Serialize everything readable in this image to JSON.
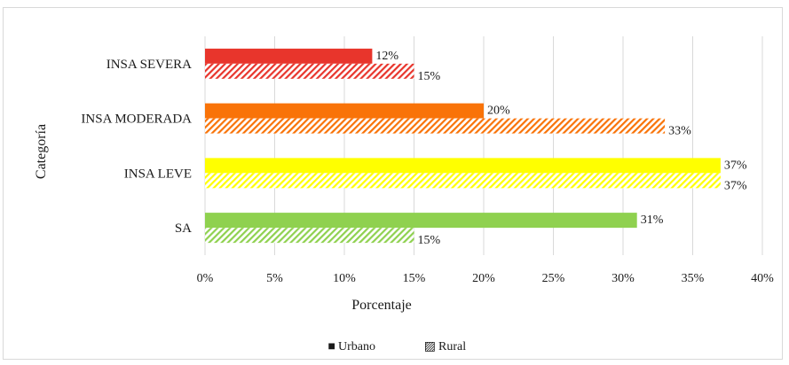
{
  "chart_data": {
    "type": "bar",
    "orientation": "horizontal",
    "categories": [
      "INSA SEVERA",
      "INSA MODERADA",
      "INSA LEVE",
      "SA"
    ],
    "series": [
      {
        "name": "Urbano",
        "values": [
          12,
          20,
          37,
          31
        ],
        "labels": [
          "12%",
          "20%",
          "37%",
          "31%"
        ],
        "pattern": "solid"
      },
      {
        "name": "Rural",
        "values": [
          15,
          33,
          37,
          15
        ],
        "labels": [
          "15%",
          "33%",
          "37%",
          "15%"
        ],
        "pattern": "hatched"
      }
    ],
    "category_colors": {
      "INSA SEVERA": "#e8352c",
      "INSA MODERADA": "#f97308",
      "INSA LEVE": "#ffff00",
      "SA": "#8fd14f"
    },
    "xlabel": "Porcentaje",
    "ylabel": "Categoría",
    "xlim": [
      0,
      40
    ],
    "xticks": [
      "0%",
      "5%",
      "10%",
      "15%",
      "20%",
      "25%",
      "30%",
      "35%",
      "40%"
    ],
    "grid": "vertical",
    "legend": "bottom-center",
    "legend_marks": {
      "Urbano": "■",
      "Rural": "▨"
    }
  }
}
